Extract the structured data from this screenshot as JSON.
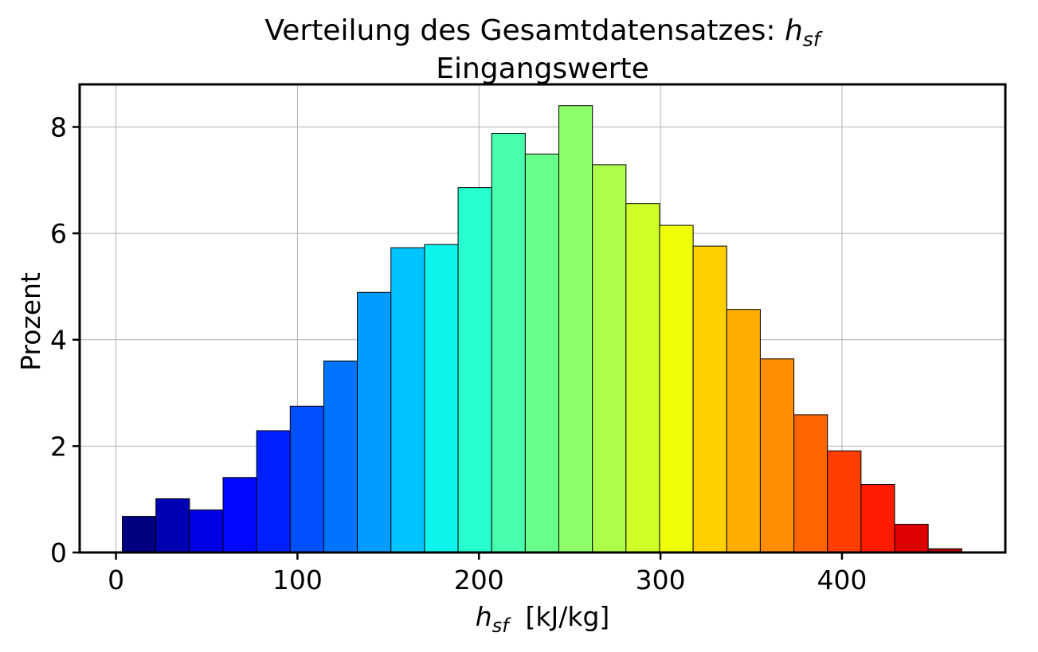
{
  "chart_data": {
    "type": "bar",
    "title_main": "Verteilung des Gesamtdatensatzes: ",
    "title_var": "h",
    "title_var_sub": "sf",
    "subtitle": "Eingangswerte",
    "xlabel_var": "h",
    "xlabel_var_sub": "sf",
    "xlabel_unit": "  [kJ/kg]",
    "ylabel": "Prozent",
    "xlim": [
      -20,
      490
    ],
    "ylim": [
      0,
      8.8
    ],
    "xticks": [
      0,
      100,
      200,
      300,
      400
    ],
    "yticks": [
      0,
      2,
      4,
      6,
      8
    ],
    "grid": true,
    "bin_edges": [
      3.5,
      22.0,
      40.5,
      59.0,
      77.5,
      96.0,
      114.5,
      133.0,
      151.5,
      170.0,
      188.5,
      207.0,
      225.5,
      244.0,
      262.5,
      281.0,
      299.5,
      318.0,
      336.5,
      355.0,
      373.5,
      392.0,
      410.5,
      429.0,
      447.5,
      466.0
    ],
    "values": [
      0.68,
      1.01,
      0.8,
      1.41,
      2.29,
      2.75,
      3.6,
      4.89,
      5.73,
      5.79,
      6.86,
      7.88,
      7.49,
      8.4,
      7.29,
      6.56,
      6.15,
      5.76,
      4.57,
      3.64,
      2.59,
      1.91,
      1.28,
      0.53,
      0.07
    ],
    "colors": [
      "#000080",
      "#0000b2",
      "#0000e5",
      "#0008ff",
      "#0020ff",
      "#0050ff",
      "#0074ff",
      "#009cff",
      "#00c4ff",
      "#0cf4eb",
      "#28ffce",
      "#48ffad",
      "#68ff8d",
      "#8dff6a",
      "#adff4a",
      "#ceff28",
      "#eeff08",
      "#ffd000",
      "#ffae00",
      "#ff8d00",
      "#ff6400",
      "#ff3e00",
      "#ff1b00",
      "#dd0000",
      "#a40000"
    ]
  }
}
